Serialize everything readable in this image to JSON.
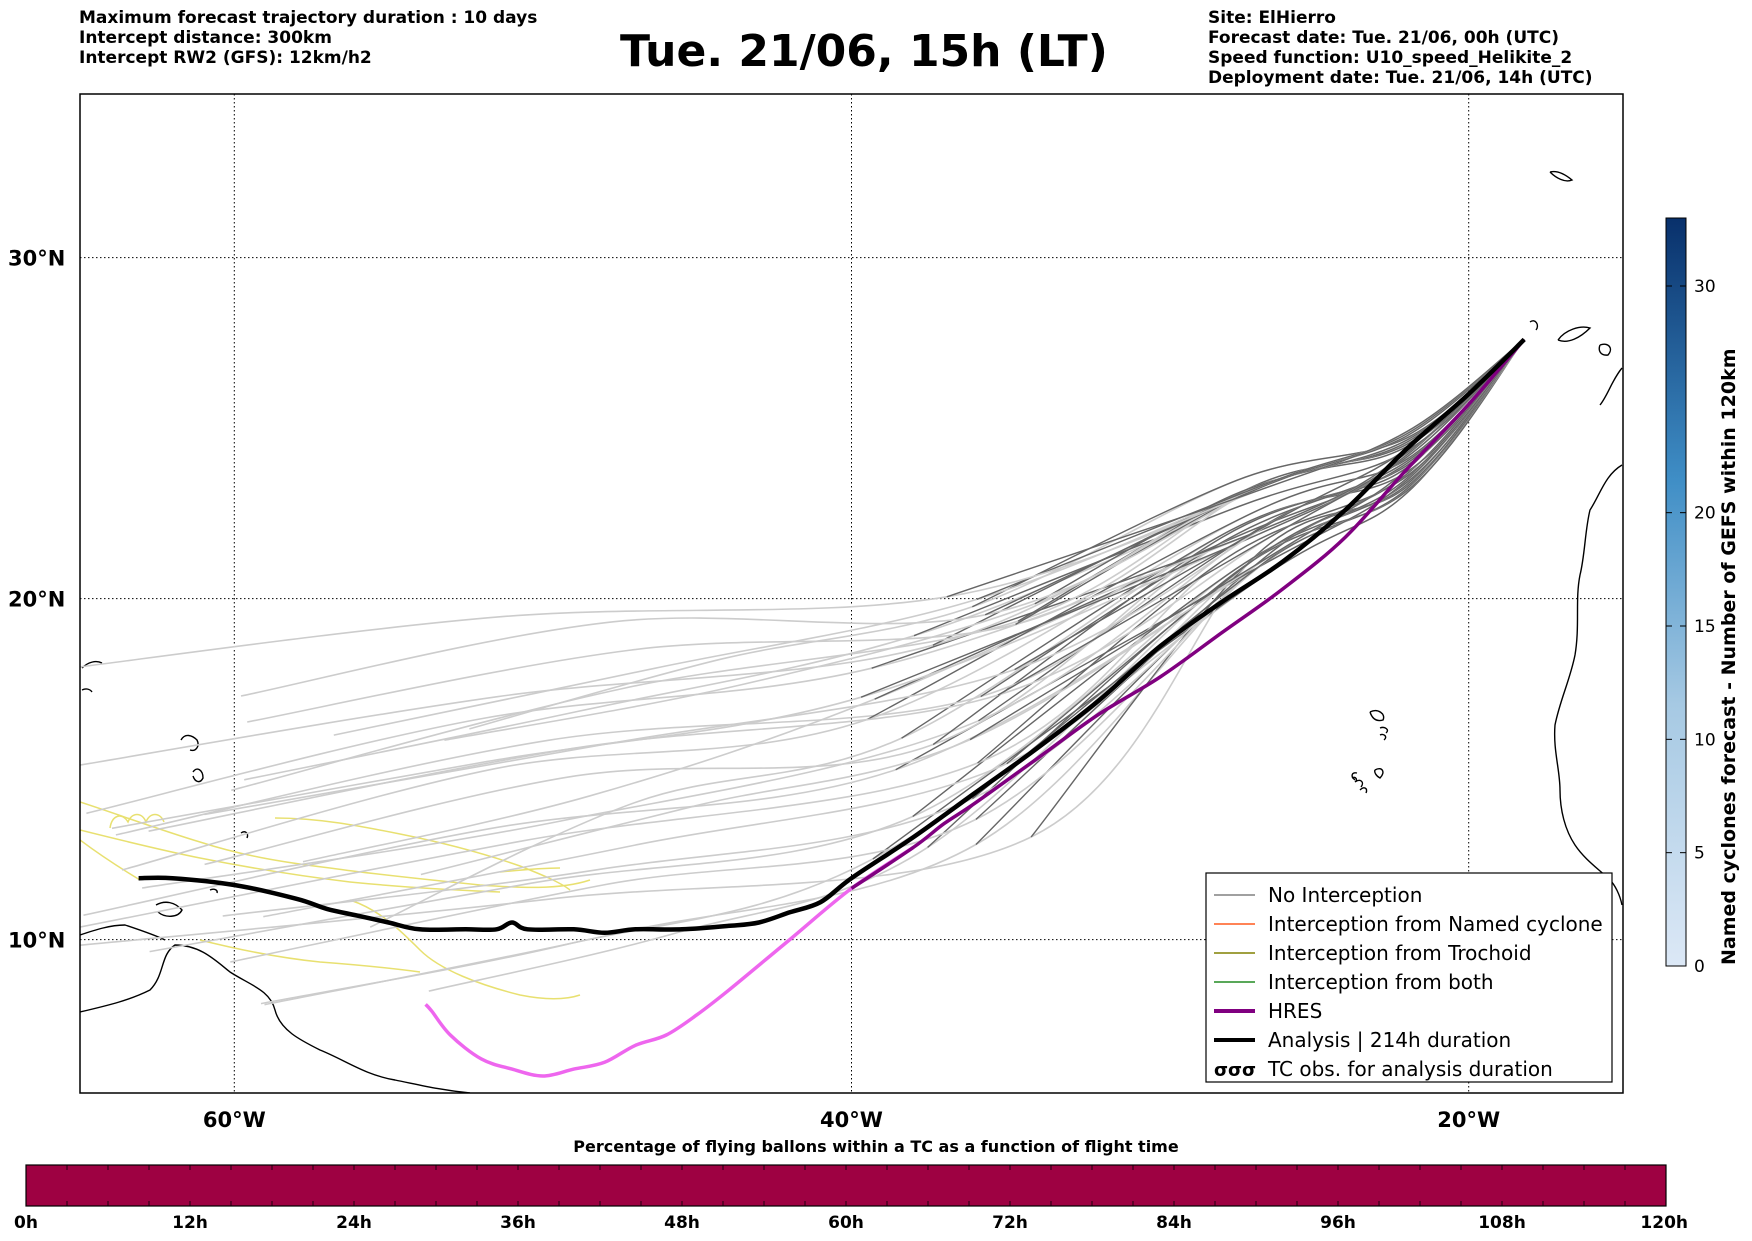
{
  "header": {
    "left_lines": [
      "Maximum forecast trajectory duration : 10 days",
      "Intercept distance: 300km",
      "Intercept RW2 (GFS):  12km/h2"
    ],
    "title": "Tue. 21/06, 15h (LT)",
    "right_lines": [
      "Site: ElHierro",
      "Forecast date: Tue. 21/06, 00h (UTC)",
      "Speed function: U10_speed_Helikite_2",
      "Deployment date: Tue. 21/06, 14h (UTC)"
    ]
  },
  "map": {
    "lon_range": [
      -65,
      -15
    ],
    "lat_range": [
      5.5,
      34.8
    ],
    "lon_ticks": [
      {
        "value": -60,
        "label": "60°W"
      },
      {
        "value": -40,
        "label": "40°W"
      },
      {
        "value": -20,
        "label": "20°W"
      }
    ],
    "lat_ticks": [
      {
        "value": 30,
        "label": "30°N"
      },
      {
        "value": 20,
        "label": "20°N"
      },
      {
        "value": 10,
        "label": "10°N"
      }
    ],
    "grid": "dotted",
    "colors": {
      "no_interception_dark": "#666666",
      "no_interception_light": "#cccccc",
      "named_cyclone": "#ff5a1e",
      "trochoid": "#808000",
      "both": "#228b22",
      "hres_dark": "#800080",
      "hres_light": "#ee66ee",
      "analysis": "#000000",
      "tc_tracks": "#e8e070"
    },
    "analysis_track": [
      [
        -18.2,
        27.6
      ],
      [
        -20,
        26.0
      ],
      [
        -22,
        24.4
      ],
      [
        -24,
        22.6
      ],
      [
        -26,
        21.1
      ],
      [
        -28,
        19.9
      ],
      [
        -30,
        18.6
      ],
      [
        -32,
        17.0
      ],
      [
        -34,
        15.6
      ],
      [
        -36,
        14.3
      ],
      [
        -38,
        13.0
      ],
      [
        -40,
        11.8
      ],
      [
        -41,
        11.1
      ],
      [
        -42,
        10.8
      ],
      [
        -43,
        10.5
      ],
      [
        -44,
        10.4
      ],
      [
        -45.5,
        10.3
      ],
      [
        -47,
        10.3
      ],
      [
        -48,
        10.2
      ],
      [
        -49,
        10.3
      ],
      [
        -50.5,
        10.3
      ],
      [
        -51,
        10.5
      ],
      [
        -51.5,
        10.3
      ],
      [
        -52.5,
        10.3
      ],
      [
        -54,
        10.3
      ],
      [
        -55,
        10.5
      ],
      [
        -56,
        10.7
      ],
      [
        -57,
        10.9
      ],
      [
        -58,
        11.2
      ],
      [
        -60,
        11.6
      ],
      [
        -62,
        11.8
      ],
      [
        -63.1,
        11.8
      ]
    ],
    "hres_track": [
      [
        -18.2,
        27.6
      ],
      [
        -20,
        25.7
      ],
      [
        -22,
        23.8
      ],
      [
        -24,
        21.8
      ],
      [
        -26,
        20.3
      ],
      [
        -28,
        19.0
      ],
      [
        -30,
        17.7
      ],
      [
        -32,
        16.6
      ],
      [
        -34,
        15.3
      ],
      [
        -36,
        14.0
      ],
      [
        -37,
        13.4
      ],
      [
        -38,
        12.7
      ],
      [
        -40,
        11.5
      ],
      [
        -42,
        10.0
      ],
      [
        -44,
        8.5
      ],
      [
        -45,
        7.8
      ],
      [
        -46,
        7.2
      ],
      [
        -47,
        6.9
      ],
      [
        -48,
        6.4
      ],
      [
        -49,
        6.2
      ],
      [
        -50,
        6.0
      ],
      [
        -51,
        6.2
      ],
      [
        -52,
        6.5
      ],
      [
        -53,
        7.2
      ],
      [
        -53.6,
        7.9
      ],
      [
        -53.8,
        8.1
      ]
    ],
    "legend": [
      {
        "label": "No Interception",
        "kind": "thin",
        "color": "#808080"
      },
      {
        "label": "Interception from Named cyclone",
        "kind": "thin",
        "color": "#ff5a1e"
      },
      {
        "label": "Interception from Trochoid",
        "kind": "thin",
        "color": "#808000"
      },
      {
        "label": "Interception from both",
        "kind": "thin",
        "color": "#228b22"
      },
      {
        "label": "HRES",
        "kind": "thick",
        "color": "#800080"
      },
      {
        "label": "Analysis | 214h duration",
        "kind": "thick",
        "color": "#000000"
      },
      {
        "label": "TC obs. for analysis duration",
        "kind": "symbol",
        "color": "#000000"
      }
    ]
  },
  "colorbar_right": {
    "title": "Named cyclones forecast - Number of GEFS within 120km",
    "ticks": [
      0,
      5,
      10,
      15,
      20,
      30
    ],
    "max": 33
  },
  "colorbar_bottom": {
    "title": "Percentage of flying ballons within a TC as a function of flight time",
    "fill_color": "#9e0142",
    "ticks": [
      "0h",
      "12h",
      "24h",
      "36h",
      "48h",
      "60h",
      "72h",
      "84h",
      "96h",
      "108h",
      "120h"
    ]
  }
}
